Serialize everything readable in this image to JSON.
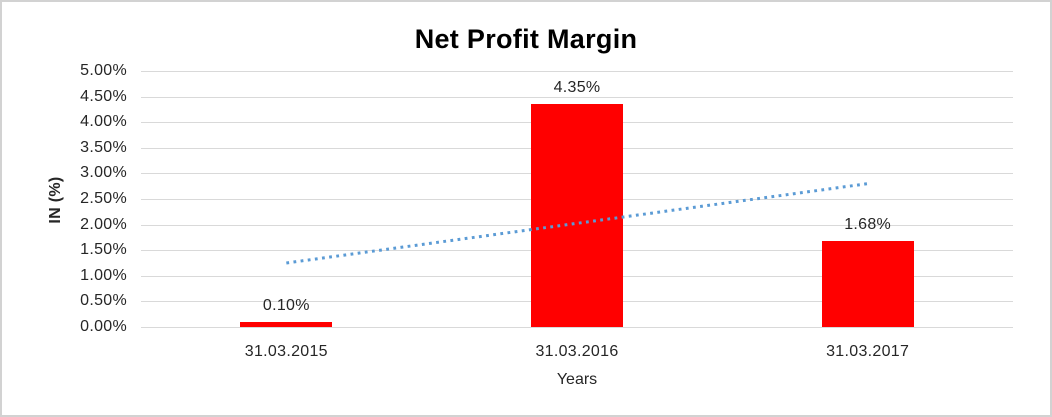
{
  "chart_data": {
    "type": "bar",
    "title": "Net Profit Margin",
    "xlabel": "Years",
    "ylabel": "IN (%)",
    "categories": [
      "31.03.2015",
      "31.03.2016",
      "31.03.2017"
    ],
    "values": [
      0.1,
      4.35,
      1.68
    ],
    "data_labels": [
      "0.10%",
      "4.35%",
      "1.68%"
    ],
    "ylim": [
      0,
      5
    ],
    "ytick_values": [
      0,
      0.5,
      1,
      1.5,
      2,
      2.5,
      3,
      3.5,
      4,
      4.5,
      5
    ],
    "ytick_labels": [
      "0.00%",
      "0.50%",
      "1.00%",
      "1.50%",
      "2.00%",
      "2.50%",
      "3.00%",
      "3.50%",
      "4.00%",
      "4.50%",
      "5.00%"
    ],
    "grid": true,
    "legend": false,
    "bar_color": "#FF0000",
    "gridline_color": "#D9D9D9",
    "frame_color": "#D2D2D2",
    "text_color": "#262626",
    "title_color": "#000000",
    "trendline": {
      "type": "linear",
      "style": "dotted",
      "color": "#5B9BD5",
      "start": {
        "category_index": 0,
        "value": 1.25
      },
      "end": {
        "category_index": 2,
        "value": 2.8
      }
    }
  }
}
